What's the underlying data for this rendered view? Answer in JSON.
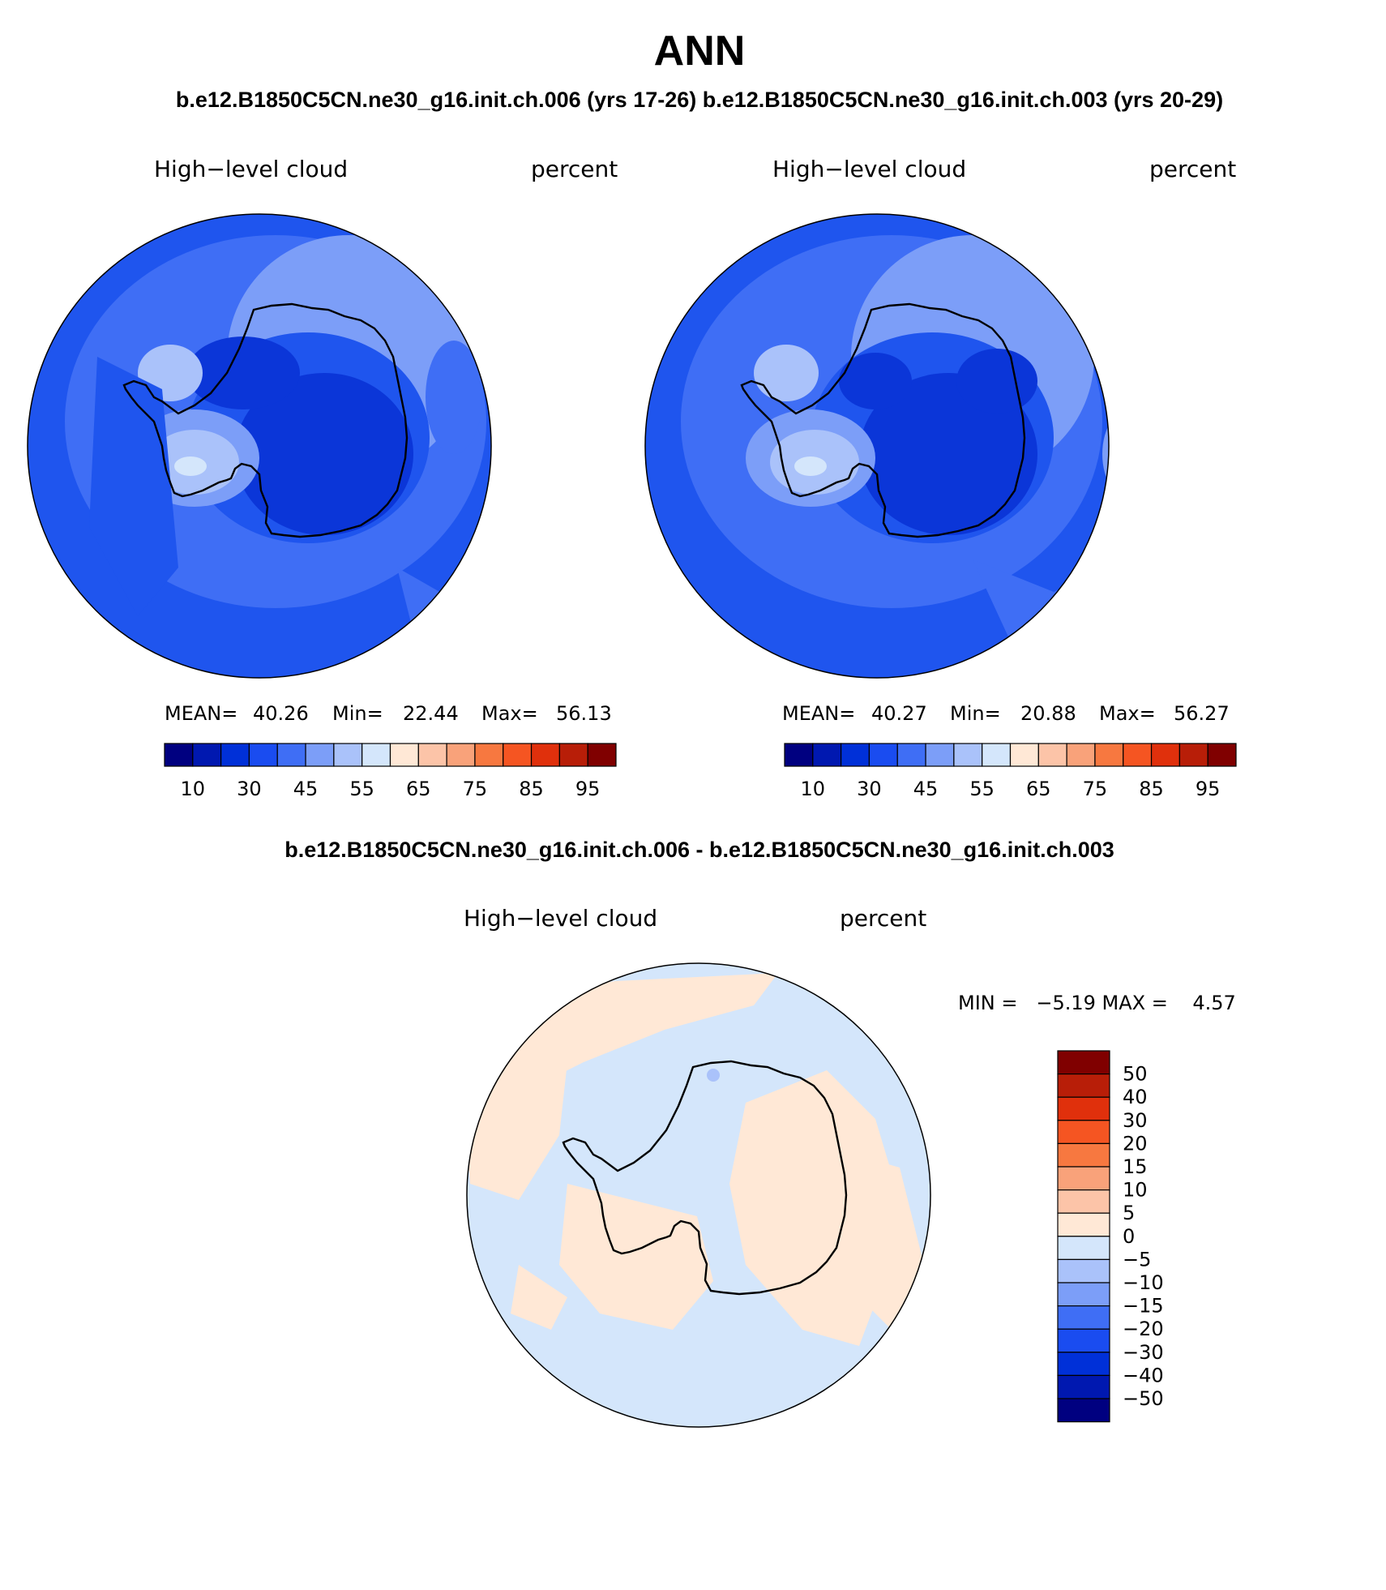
{
  "title": "ANN",
  "case_header": "b.e12.B1850C5CN.ne30_g16.init.ch.006 (yrs 17-26)  b.e12.B1850C5CN.ne30_g16.init.ch.003 (yrs 20-29)",
  "diff_header": "b.e12.B1850C5CN.ne30_g16.init.ch.006 - b.e12.B1850C5CN.ne30_g16.init.ch.003",
  "panels": [
    {
      "variable": "High−level cloud",
      "units": "percent",
      "mean_label": "MEAN=",
      "mean": "40.26",
      "min_label": "Min=",
      "min": "22.44",
      "max_label": "Max=",
      "max": "56.13"
    },
    {
      "variable": "High−level cloud",
      "units": "percent",
      "mean_label": "MEAN=",
      "mean": "40.27",
      "min_label": "Min=",
      "min": "20.88",
      "max_label": "Max=",
      "max": "56.27"
    }
  ],
  "colorbar_abs": {
    "colors": [
      "#000080",
      "#0018b0",
      "#0030d8",
      "#1a4cf0",
      "#3f6ef5",
      "#7c9ef8",
      "#aac2fa",
      "#d4e6fb",
      "#ffe8d6",
      "#fcc4a8",
      "#f9a27a",
      "#f77840",
      "#f55522",
      "#e0300c",
      "#b81e08",
      "#800000"
    ],
    "labels": [
      "10",
      "30",
      "45",
      "55",
      "65",
      "75",
      "85",
      "95"
    ]
  },
  "diff_panel": {
    "variable": "High−level cloud",
    "units": "percent",
    "minmax_text": "MIN =   −5.19 MAX =    4.57"
  },
  "colorbar_diff": {
    "colors": [
      "#800000",
      "#b81e08",
      "#e0300c",
      "#f55522",
      "#f77840",
      "#f9a27a",
      "#fcc4a8",
      "#ffe8d6",
      "#d4e6fb",
      "#aac2fa",
      "#7c9ef8",
      "#3f6ef5",
      "#1a4cf0",
      "#0030d8",
      "#0018b0",
      "#000080"
    ],
    "labels": [
      "50",
      "40",
      "30",
      "20",
      "15",
      "10",
      "5",
      "0",
      "−5",
      "−10",
      "−15",
      "−20",
      "−30",
      "−40",
      "−50"
    ]
  },
  "map_colors": {
    "ocean_abs": "#1f55ee",
    "mid_abs": "#3f6ef5",
    "light_abs": "#7c9ef8",
    "lighter_abs": "#aac2fa",
    "palest_abs": "#d4e6fb",
    "dark_abs": "#0b36d8",
    "diff_neg": "#d4e6fb",
    "diff_pos": "#ffe8d6",
    "diff_neg2": "#aac2fa"
  }
}
